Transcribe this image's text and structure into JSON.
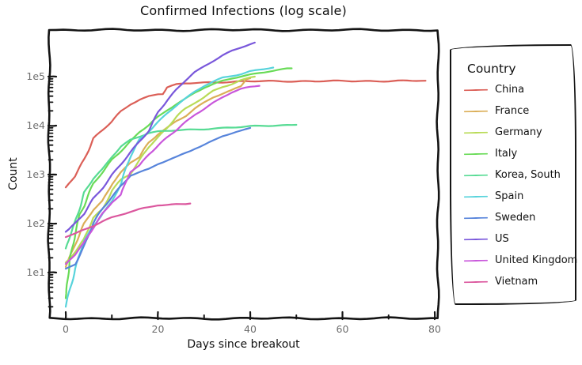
{
  "background": "#ffffff",
  "frame_color": "#141414",
  "tick_label_color": "#6e6e6e",
  "text_color": "#111111",
  "chart_data": {
    "type": "line",
    "title": "Confirmed Infections (log scale)",
    "xlabel": "Days since breakout",
    "ylabel": "Count",
    "legend_title": "Country",
    "legend_position": "right-outside",
    "style": "xkcd-hand-drawn",
    "grid": false,
    "x_axis": {
      "scale": "linear",
      "tick_labels": [
        "0",
        "20",
        "40",
        "60",
        "80"
      ],
      "tick_values": [
        0,
        20,
        40,
        60,
        80
      ],
      "minor_tick_values": [
        10,
        30,
        50,
        70
      ],
      "range": [
        -3.6,
        80.6
      ]
    },
    "y_axis": {
      "scale": "log",
      "tick_labels": [
        "1e1",
        "1e2",
        "1e3",
        "1e4",
        "1e5"
      ],
      "tick_values": [
        10,
        100,
        1000,
        10000,
        100000
      ],
      "range": [
        1.2,
        900000
      ]
    },
    "series": [
      {
        "name": "China",
        "color": "#db5f57",
        "points": [
          [
            0,
            548
          ],
          [
            2,
            920
          ],
          [
            4,
            2075
          ],
          [
            6,
            5509
          ],
          [
            8,
            8141
          ],
          [
            10,
            11891
          ],
          [
            12,
            19716
          ],
          [
            14,
            27440
          ],
          [
            16,
            34110
          ],
          [
            18,
            39829
          ],
          [
            20,
            44386
          ],
          [
            21,
            44759
          ],
          [
            22,
            59895
          ],
          [
            24,
            68413
          ],
          [
            26,
            72434
          ],
          [
            28,
            74619
          ],
          [
            30,
            75550
          ],
          [
            32,
            77022
          ],
          [
            34,
            77754
          ],
          [
            36,
            78497
          ],
          [
            38,
            79251
          ],
          [
            40,
            80026
          ],
          [
            44,
            80552
          ],
          [
            48,
            80735
          ],
          [
            52,
            80813
          ],
          [
            56,
            80881
          ],
          [
            60,
            81008
          ],
          [
            64,
            81102
          ],
          [
            68,
            81305
          ],
          [
            72,
            81661
          ],
          [
            76,
            82122
          ],
          [
            78,
            82511
          ]
        ]
      },
      {
        "name": "France",
        "color": "#dbae57",
        "points": [
          [
            0,
            13
          ],
          [
            2,
            38
          ],
          [
            4,
            100
          ],
          [
            6,
            191
          ],
          [
            8,
            285
          ],
          [
            10,
            653
          ],
          [
            12,
            1126
          ],
          [
            14,
            1784
          ],
          [
            16,
            2281
          ],
          [
            18,
            4469
          ],
          [
            20,
            6633
          ],
          [
            22,
            9043
          ],
          [
            24,
            12612
          ],
          [
            26,
            16018
          ],
          [
            28,
            22304
          ],
          [
            30,
            29155
          ],
          [
            32,
            37575
          ],
          [
            34,
            44550
          ],
          [
            36,
            52128
          ],
          [
            38,
            64338
          ],
          [
            39,
            89953
          ],
          [
            40,
            92839
          ]
        ]
      },
      {
        "name": "Germany",
        "color": "#b9db57",
        "points": [
          [
            0,
            16
          ],
          [
            2,
            27
          ],
          [
            4,
            48
          ],
          [
            6,
            130
          ],
          [
            8,
            196
          ],
          [
            10,
            482
          ],
          [
            12,
            799
          ],
          [
            14,
            1040
          ],
          [
            16,
            1908
          ],
          [
            18,
            3675
          ],
          [
            20,
            5795
          ],
          [
            22,
            9257
          ],
          [
            24,
            15320
          ],
          [
            26,
            22213
          ],
          [
            28,
            29056
          ],
          [
            30,
            37323
          ],
          [
            32,
            50871
          ],
          [
            34,
            62095
          ],
          [
            36,
            71808
          ],
          [
            38,
            84794
          ],
          [
            40,
            96092
          ],
          [
            41,
            100123
          ]
        ]
      },
      {
        "name": "Italy",
        "color": "#69db57",
        "points": [
          [
            0,
            3
          ],
          [
            1,
            20
          ],
          [
            2,
            62
          ],
          [
            3,
            155
          ],
          [
            4,
            229
          ],
          [
            6,
            655
          ],
          [
            8,
            1128
          ],
          [
            10,
            2036
          ],
          [
            12,
            3089
          ],
          [
            14,
            4636
          ],
          [
            16,
            7375
          ],
          [
            18,
            10149
          ],
          [
            20,
            15113
          ],
          [
            22,
            21157
          ],
          [
            24,
            27980
          ],
          [
            26,
            35713
          ],
          [
            28,
            47021
          ],
          [
            30,
            59138
          ],
          [
            32,
            69176
          ],
          [
            34,
            80589
          ],
          [
            36,
            92472
          ],
          [
            38,
            101739
          ],
          [
            40,
            110574
          ],
          [
            42,
            119827
          ],
          [
            44,
            128948
          ],
          [
            46,
            135586
          ],
          [
            48,
            143626
          ],
          [
            49,
            147577
          ]
        ]
      },
      {
        "name": "Korea, South",
        "color": "#57db94",
        "points": [
          [
            0,
            31
          ],
          [
            2,
            104
          ],
          [
            4,
            433
          ],
          [
            6,
            833
          ],
          [
            8,
            1261
          ],
          [
            10,
            2337
          ],
          [
            12,
            3736
          ],
          [
            14,
            5186
          ],
          [
            16,
            6088
          ],
          [
            18,
            7041
          ],
          [
            20,
            7478
          ],
          [
            22,
            7755
          ],
          [
            24,
            7979
          ],
          [
            26,
            8162
          ],
          [
            28,
            8320
          ],
          [
            30,
            8565
          ],
          [
            32,
            8799
          ],
          [
            34,
            8961
          ],
          [
            36,
            9137
          ],
          [
            38,
            9332
          ],
          [
            40,
            9583
          ],
          [
            42,
            9786
          ],
          [
            44,
            9976
          ],
          [
            46,
            10156
          ],
          [
            48,
            10284
          ],
          [
            50,
            10384
          ]
        ]
      },
      {
        "name": "Spain",
        "color": "#57d3db",
        "points": [
          [
            0,
            2
          ],
          [
            2,
            12
          ],
          [
            4,
            45
          ],
          [
            6,
            84
          ],
          [
            8,
            165
          ],
          [
            10,
            282
          ],
          [
            12,
            674
          ],
          [
            14,
            2277
          ],
          [
            16,
            5232
          ],
          [
            18,
            7798
          ],
          [
            20,
            11748
          ],
          [
            22,
            18077
          ],
          [
            24,
            25374
          ],
          [
            26,
            35136
          ],
          [
            28,
            49515
          ],
          [
            30,
            65719
          ],
          [
            32,
            80110
          ],
          [
            34,
            95923
          ],
          [
            36,
            104118
          ],
          [
            38,
            112065
          ],
          [
            40,
            126168
          ],
          [
            42,
            136675
          ],
          [
            44,
            148220
          ],
          [
            45,
            153222
          ]
        ]
      },
      {
        "name": "Sweden",
        "color": "#5784db",
        "points": [
          [
            0,
            12
          ],
          [
            2,
            15
          ],
          [
            4,
            35
          ],
          [
            6,
            101
          ],
          [
            8,
            203
          ],
          [
            10,
            355
          ],
          [
            12,
            599
          ],
          [
            14,
            961
          ],
          [
            16,
            1103
          ],
          [
            18,
            1279
          ],
          [
            20,
            1639
          ],
          [
            22,
            1934
          ],
          [
            24,
            2286
          ],
          [
            26,
            2840
          ],
          [
            28,
            3447
          ],
          [
            30,
            4028
          ],
          [
            32,
            4947
          ],
          [
            34,
            6131
          ],
          [
            36,
            6830
          ],
          [
            38,
            7693
          ],
          [
            40,
            8995
          ]
        ]
      },
      {
        "name": "US",
        "color": "#7957db",
        "points": [
          [
            0,
            68
          ],
          [
            2,
            100
          ],
          [
            4,
            158
          ],
          [
            6,
            319
          ],
          [
            8,
            537
          ],
          [
            10,
            994
          ],
          [
            12,
            1663
          ],
          [
            14,
            2825
          ],
          [
            16,
            4632
          ],
          [
            18,
            7783
          ],
          [
            20,
            19100
          ],
          [
            22,
            33746
          ],
          [
            24,
            53740
          ],
          [
            26,
            83836
          ],
          [
            28,
            121478
          ],
          [
            30,
            161807
          ],
          [
            32,
            213372
          ],
          [
            34,
            275586
          ],
          [
            36,
            337072
          ],
          [
            38,
            396223
          ],
          [
            40,
            461437
          ],
          [
            41,
            496535
          ]
        ]
      },
      {
        "name": "United Kingdom",
        "color": "#c957db",
        "points": [
          [
            0,
            15
          ],
          [
            2,
            23
          ],
          [
            4,
            40
          ],
          [
            6,
            85
          ],
          [
            8,
            163
          ],
          [
            10,
            273
          ],
          [
            12,
            382
          ],
          [
            14,
            1140
          ],
          [
            16,
            1543
          ],
          [
            18,
            2626
          ],
          [
            20,
            3983
          ],
          [
            22,
            5683
          ],
          [
            24,
            8077
          ],
          [
            26,
            11658
          ],
          [
            28,
            17089
          ],
          [
            30,
            22141
          ],
          [
            32,
            29474
          ],
          [
            34,
            38168
          ],
          [
            36,
            47806
          ],
          [
            38,
            55242
          ],
          [
            40,
            60733
          ],
          [
            42,
            65077
          ]
        ]
      },
      {
        "name": "Vietnam",
        "color": "#db579e",
        "points": [
          [
            0,
            53
          ],
          [
            2,
            61
          ],
          [
            4,
            75
          ],
          [
            6,
            91
          ],
          [
            8,
            113
          ],
          [
            10,
            134
          ],
          [
            12,
            153
          ],
          [
            14,
            174
          ],
          [
            16,
            194
          ],
          [
            18,
            212
          ],
          [
            20,
            237
          ],
          [
            22,
            241
          ],
          [
            24,
            249
          ],
          [
            26,
            255
          ],
          [
            27,
            257
          ]
        ]
      }
    ]
  }
}
